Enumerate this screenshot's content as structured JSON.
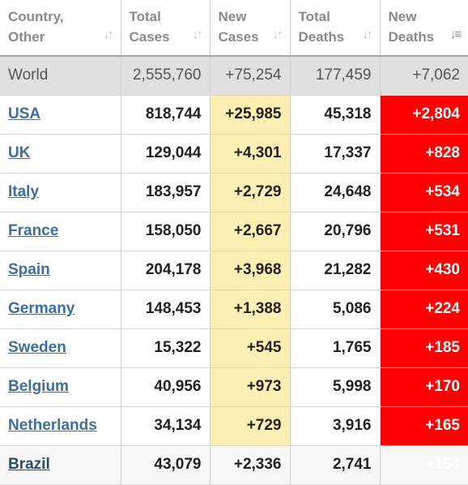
{
  "headers": [
    {
      "line1": "Country,",
      "line2": "Other"
    },
    {
      "line1": "Total",
      "line2": "Cases"
    },
    {
      "line1": "New",
      "line2": "Cases"
    },
    {
      "line1": "Total",
      "line2": "Deaths"
    },
    {
      "line1": "New",
      "line2": "Deaths"
    }
  ],
  "world": {
    "country": "World",
    "total_cases": "2,555,760",
    "new_cases": "+75,254",
    "total_deaths": "177,459",
    "new_deaths": "+7,062"
  },
  "rows": [
    {
      "country": "USA",
      "total_cases": "818,744",
      "new_cases": "+25,985",
      "total_deaths": "45,318",
      "new_deaths": "+2,804"
    },
    {
      "country": "UK",
      "total_cases": "129,044",
      "new_cases": "+4,301",
      "total_deaths": "17,337",
      "new_deaths": "+828"
    },
    {
      "country": "Italy",
      "total_cases": "183,957",
      "new_cases": "+2,729",
      "total_deaths": "24,648",
      "new_deaths": "+534"
    },
    {
      "country": "France",
      "total_cases": "158,050",
      "new_cases": "+2,667",
      "total_deaths": "20,796",
      "new_deaths": "+531"
    },
    {
      "country": "Spain",
      "total_cases": "204,178",
      "new_cases": "+3,968",
      "total_deaths": "21,282",
      "new_deaths": "+430"
    },
    {
      "country": "Germany",
      "total_cases": "148,453",
      "new_cases": "+1,388",
      "total_deaths": "5,086",
      "new_deaths": "+224"
    },
    {
      "country": "Sweden",
      "total_cases": "15,322",
      "new_cases": "+545",
      "total_deaths": "1,765",
      "new_deaths": "+185"
    },
    {
      "country": "Belgium",
      "total_cases": "40,956",
      "new_cases": "+973",
      "total_deaths": "5,998",
      "new_deaths": "+170"
    },
    {
      "country": "Netherlands",
      "total_cases": "34,134",
      "new_cases": "+729",
      "total_deaths": "3,916",
      "new_deaths": "+165"
    },
    {
      "country": "Brazil",
      "total_cases": "43,079",
      "new_cases": "+2,336",
      "total_deaths": "2,741",
      "new_deaths": "+154"
    }
  ],
  "colors": {
    "new_cases_bg": "#fdeeb4",
    "new_deaths_bg": "#fe0000",
    "world_bg": "#e0e0e0",
    "link": "#3b6fa0"
  },
  "icons": {
    "sort": "sort-arrows-icon",
    "sort_active": "sort-descending-icon"
  }
}
